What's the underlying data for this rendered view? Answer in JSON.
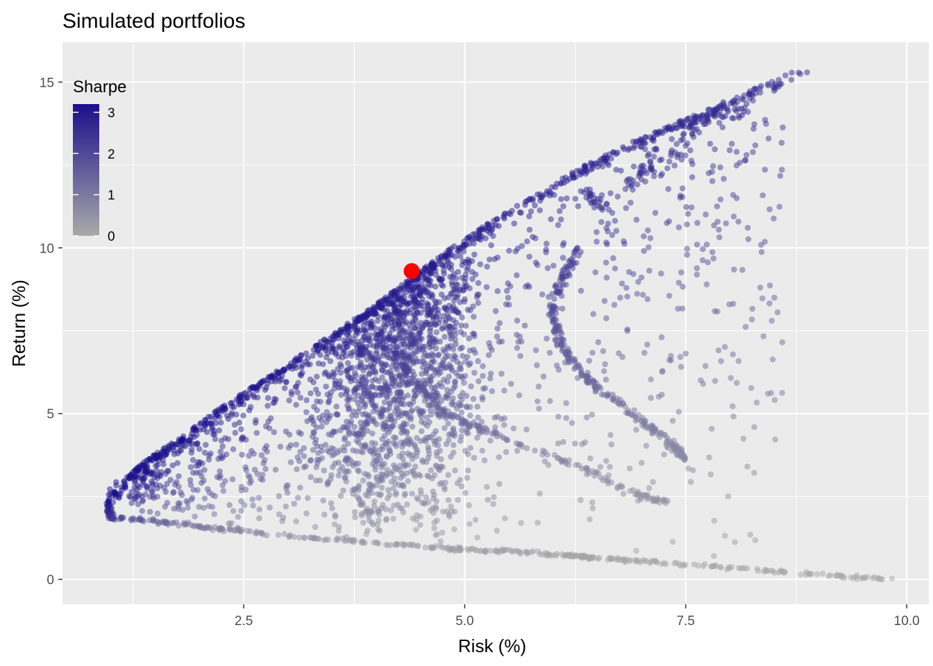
{
  "chart_data": {
    "type": "scatter",
    "title": "Simulated portfolios",
    "xlabel": "Risk (%)",
    "ylabel": "Return (%)",
    "xlim": [
      0.45,
      10.25
    ],
    "ylim": [
      -0.75,
      16.2
    ],
    "x_ticks": [
      2.5,
      5.0,
      7.5,
      10.0
    ],
    "x_tick_labels": [
      "2.5",
      "5.0",
      "7.5",
      "10.0"
    ],
    "y_ticks": [
      0,
      5,
      10,
      15
    ],
    "y_tick_labels": [
      "0",
      "5",
      "10",
      "15"
    ],
    "grid": true,
    "background_color": "#EBEBEB",
    "legend": {
      "title": "Sharpe",
      "placement": "top-left-inside",
      "type": "colorbar",
      "range": [
        0,
        3.2
      ],
      "breaks": [
        0,
        1,
        2,
        3
      ],
      "break_labels": [
        "0",
        "1",
        "2",
        "3"
      ],
      "color_low": "#A9A9A9",
      "color_high": "#1A0F8C"
    },
    "efficient_frontier": [
      {
        "x": 1.0,
        "y": 2.0
      },
      {
        "x": 0.95,
        "y": 2.3
      },
      {
        "x": 1.1,
        "y": 2.9
      },
      {
        "x": 1.4,
        "y": 3.6
      },
      {
        "x": 1.8,
        "y": 4.3
      },
      {
        "x": 2.2,
        "y": 5.1
      },
      {
        "x": 2.6,
        "y": 5.8
      },
      {
        "x": 3.0,
        "y": 6.5
      },
      {
        "x": 3.5,
        "y": 7.4
      },
      {
        "x": 4.0,
        "y": 8.3
      },
      {
        "x": 4.4,
        "y": 9.1
      },
      {
        "x": 4.8,
        "y": 9.9
      },
      {
        "x": 5.3,
        "y": 10.8
      },
      {
        "x": 5.8,
        "y": 11.6
      },
      {
        "x": 6.3,
        "y": 12.4
      },
      {
        "x": 6.9,
        "y": 13.2
      },
      {
        "x": 7.5,
        "y": 13.9
      },
      {
        "x": 8.1,
        "y": 14.6
      },
      {
        "x": 8.8,
        "y": 15.4
      }
    ],
    "lower_boundary": [
      {
        "x": 1.0,
        "y": 1.9
      },
      {
        "x": 1.5,
        "y": 1.75
      },
      {
        "x": 2.0,
        "y": 1.6
      },
      {
        "x": 2.5,
        "y": 1.45
      },
      {
        "x": 3.0,
        "y": 1.3
      },
      {
        "x": 3.5,
        "y": 1.2
      },
      {
        "x": 4.0,
        "y": 1.1
      },
      {
        "x": 4.5,
        "y": 1.0
      },
      {
        "x": 5.0,
        "y": 0.9
      },
      {
        "x": 5.5,
        "y": 0.85
      },
      {
        "x": 6.0,
        "y": 0.75
      },
      {
        "x": 6.5,
        "y": 0.65
      },
      {
        "x": 7.0,
        "y": 0.55
      },
      {
        "x": 7.5,
        "y": 0.45
      },
      {
        "x": 8.0,
        "y": 0.35
      },
      {
        "x": 8.5,
        "y": 0.25
      },
      {
        "x": 9.0,
        "y": 0.15
      },
      {
        "x": 9.5,
        "y": 0.05
      },
      {
        "x": 9.85,
        "y": 0.0
      }
    ],
    "inner_curve_1": [
      {
        "x": 6.3,
        "y": 10.0
      },
      {
        "x": 6.1,
        "y": 9.0
      },
      {
        "x": 6.0,
        "y": 8.0
      },
      {
        "x": 6.1,
        "y": 7.0
      },
      {
        "x": 6.4,
        "y": 6.0
      },
      {
        "x": 6.9,
        "y": 5.0
      },
      {
        "x": 7.3,
        "y": 4.2
      },
      {
        "x": 7.5,
        "y": 3.6
      }
    ],
    "inner_curve_2": [
      {
        "x": 4.2,
        "y": 7.0
      },
      {
        "x": 4.4,
        "y": 6.0
      },
      {
        "x": 4.8,
        "y": 5.0
      },
      {
        "x": 5.5,
        "y": 4.2
      },
      {
        "x": 6.3,
        "y": 3.4
      },
      {
        "x": 7.0,
        "y": 2.5
      },
      {
        "x": 7.3,
        "y": 2.3
      }
    ],
    "upper_right_cluster": [
      {
        "x": 6.3,
        "y": 11.7
      },
      {
        "x": 6.6,
        "y": 11.3
      },
      {
        "x": 6.9,
        "y": 12.0
      },
      {
        "x": 7.1,
        "y": 12.5
      },
      {
        "x": 7.4,
        "y": 12.8
      },
      {
        "x": 7.6,
        "y": 13.8
      },
      {
        "x": 7.8,
        "y": 14.0
      },
      {
        "x": 8.2,
        "y": 14.2
      }
    ],
    "optimal_portfolio": {
      "x": 4.4,
      "y": 9.3,
      "color": "#FF0000"
    },
    "simulated_portfolio_count": 4000
  }
}
